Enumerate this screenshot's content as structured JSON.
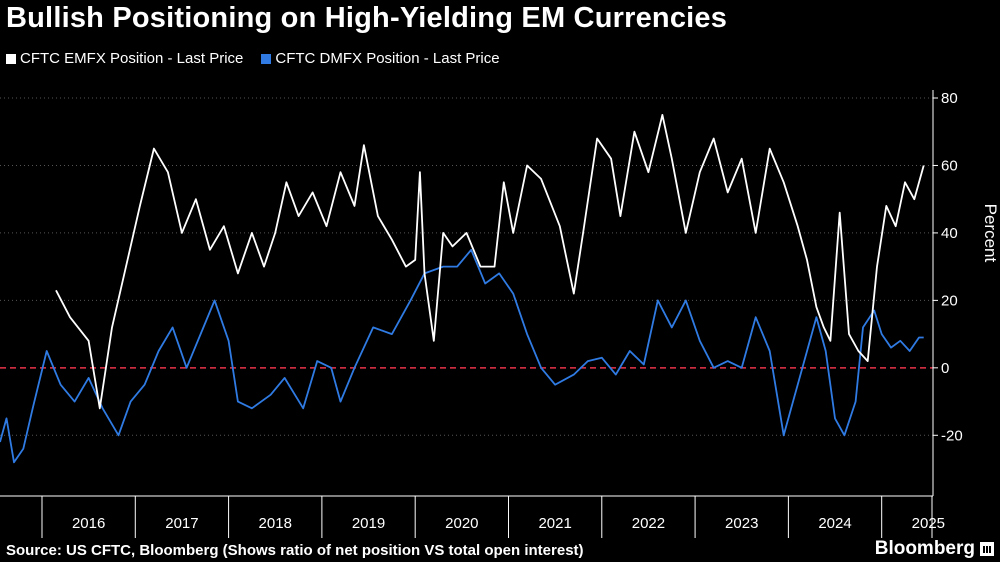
{
  "chart_data": {
    "type": "line",
    "title": "Bullish Positioning on High-Yielding EM Currencies",
    "ylabel": "Percent",
    "xlabel": "",
    "ylim": [
      -38,
      80
    ],
    "yticks": [
      80,
      60,
      40,
      20,
      0,
      -20
    ],
    "xlim": [
      2015.55,
      2025.55
    ],
    "x_tick_labels": [
      "2016",
      "2017",
      "2018",
      "2019",
      "2020",
      "2021",
      "2022",
      "2023",
      "2024",
      "2025"
    ],
    "reference_line": {
      "y": 0,
      "color": "#e8334a",
      "style": "dashed"
    },
    "series": [
      {
        "name": "CFTC EMFX Position - Last Price",
        "color": "#ffffff",
        "x": [
          2016.15,
          2016.3,
          2016.5,
          2016.62,
          2016.75,
          2016.9,
          2017.05,
          2017.2,
          2017.35,
          2017.5,
          2017.65,
          2017.8,
          2017.95,
          2018.1,
          2018.25,
          2018.38,
          2018.5,
          2018.62,
          2018.75,
          2018.9,
          2019.05,
          2019.2,
          2019.35,
          2019.45,
          2019.6,
          2019.75,
          2019.9,
          2020.0,
          2020.05,
          2020.1,
          2020.2,
          2020.3,
          2020.4,
          2020.55,
          2020.7,
          2020.85,
          2020.95,
          2021.05,
          2021.2,
          2021.35,
          2021.55,
          2021.7,
          2021.8,
          2021.95,
          2022.1,
          2022.2,
          2022.35,
          2022.5,
          2022.65,
          2022.75,
          2022.9,
          2023.05,
          2023.2,
          2023.35,
          2023.5,
          2023.65,
          2023.8,
          2023.95,
          2024.1,
          2024.2,
          2024.3,
          2024.38,
          2024.45,
          2024.55,
          2024.65,
          2024.75,
          2024.85,
          2024.95,
          2025.05,
          2025.15,
          2025.25,
          2025.35,
          2025.45
        ],
        "values": [
          23,
          15,
          8,
          -12,
          12,
          30,
          48,
          65,
          58,
          40,
          50,
          35,
          42,
          28,
          40,
          30,
          40,
          55,
          45,
          52,
          42,
          58,
          48,
          66,
          45,
          38,
          30,
          32,
          58,
          28,
          8,
          40,
          36,
          40,
          30,
          30,
          55,
          40,
          60,
          56,
          42,
          22,
          40,
          68,
          62,
          45,
          70,
          58,
          75,
          62,
          40,
          58,
          68,
          52,
          62,
          40,
          65,
          55,
          42,
          32,
          18,
          12,
          8,
          46,
          10,
          5,
          2,
          30,
          48,
          42,
          55,
          50,
          60
        ]
      },
      {
        "name": "CFTC DMFX Position - Last Price",
        "color": "#2f7be3",
        "x": [
          2015.55,
          2015.62,
          2015.7,
          2015.8,
          2015.9,
          2016.05,
          2016.2,
          2016.35,
          2016.5,
          2016.65,
          2016.82,
          2016.95,
          2017.1,
          2017.25,
          2017.4,
          2017.55,
          2017.7,
          2017.85,
          2018.0,
          2018.1,
          2018.25,
          2018.45,
          2018.6,
          2018.8,
          2018.95,
          2019.1,
          2019.2,
          2019.35,
          2019.55,
          2019.75,
          2019.95,
          2020.1,
          2020.3,
          2020.45,
          2020.6,
          2020.75,
          2020.9,
          2021.05,
          2021.2,
          2021.35,
          2021.5,
          2021.7,
          2021.85,
          2022.0,
          2022.15,
          2022.3,
          2022.45,
          2022.6,
          2022.75,
          2022.9,
          2023.05,
          2023.2,
          2023.35,
          2023.5,
          2023.65,
          2023.8,
          2023.95,
          2024.05,
          2024.15,
          2024.3,
          2024.4,
          2024.5,
          2024.6,
          2024.72,
          2024.8,
          2024.92,
          2025.0,
          2025.1,
          2025.2,
          2025.3,
          2025.4,
          2025.45
        ],
        "values": [
          -22,
          -15,
          -28,
          -24,
          -12,
          5,
          -5,
          -10,
          -3,
          -12,
          -20,
          -10,
          -5,
          5,
          12,
          0,
          10,
          20,
          8,
          -10,
          -12,
          -8,
          -3,
          -12,
          2,
          0,
          -10,
          0,
          12,
          10,
          20,
          28,
          30,
          30,
          35,
          25,
          28,
          22,
          10,
          0,
          -5,
          -2,
          2,
          3,
          -2,
          5,
          1,
          20,
          12,
          20,
          8,
          0,
          2,
          0,
          15,
          5,
          -20,
          -10,
          0,
          15,
          5,
          -15,
          -20,
          -10,
          12,
          17,
          10,
          6,
          8,
          5,
          9,
          9
        ]
      }
    ],
    "source": "Source: US CFTC, Bloomberg (Shows ratio of net position VS total open interest)",
    "brand": "Bloomberg"
  }
}
